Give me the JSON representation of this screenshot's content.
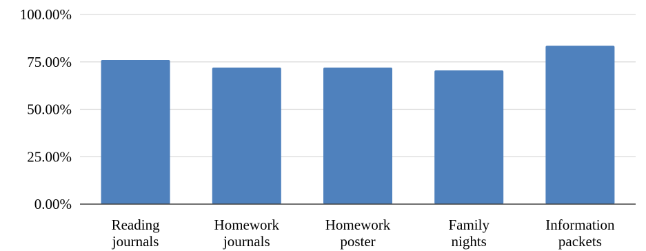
{
  "colors": {
    "bar": "#4f81bd",
    "grid": "#d9d9d9",
    "axis": "#404040",
    "text": "#000000",
    "background": "#ffffff"
  },
  "chart_data": {
    "type": "bar",
    "title": "",
    "xlabel": "",
    "ylabel": "",
    "categories": [
      [
        "Reading",
        "journals"
      ],
      [
        "Homework",
        "journals"
      ],
      [
        "Homework",
        "poster"
      ],
      [
        "Family",
        "nights"
      ],
      [
        "Information",
        "packets"
      ]
    ],
    "values": [
      76,
      72,
      72,
      70.5,
      83.5
    ],
    "ylim": [
      0,
      100
    ],
    "yticks": [
      0,
      25,
      50,
      75,
      100
    ],
    "ytick_labels": [
      "0.00%",
      "25.00%",
      "50.00%",
      "75.00%",
      "100.00%"
    ],
    "grid": true,
    "legend": "none"
  }
}
